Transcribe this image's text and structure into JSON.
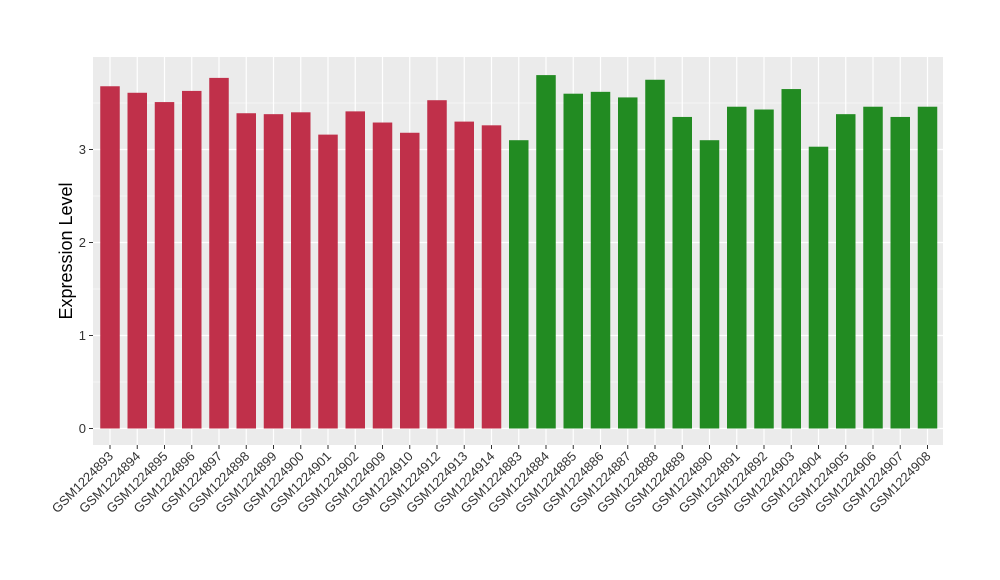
{
  "chart_data": {
    "type": "bar",
    "ylabel": "Expression Level",
    "xlabel": "",
    "ylim": [
      0,
      3.86
    ],
    "yticks": [
      0,
      1,
      2,
      3
    ],
    "grid": true,
    "background_color": "#EBEBEB",
    "grid_color": "#FFFFFF",
    "colors": {
      "group1": "#C0304A",
      "group2": "#228B22"
    },
    "categories": [
      "GSM1224893",
      "GSM1224894",
      "GSM1224895",
      "GSM1224896",
      "GSM1224897",
      "GSM1224898",
      "GSM1224899",
      "GSM1224900",
      "GSM1224901",
      "GSM1224902",
      "GSM1224909",
      "GSM1224910",
      "GSM1224912",
      "GSM1224913",
      "GSM1224914",
      "GSM1224883",
      "GSM1224884",
      "GSM1224885",
      "GSM1224886",
      "GSM1224887",
      "GSM1224888",
      "GSM1224889",
      "GSM1224890",
      "GSM1224891",
      "GSM1224892",
      "GSM1224903",
      "GSM1224904",
      "GSM1224905",
      "GSM1224906",
      "GSM1224907",
      "GSM1224908"
    ],
    "values": [
      3.68,
      3.61,
      3.51,
      3.63,
      3.77,
      3.39,
      3.38,
      3.4,
      3.16,
      3.41,
      3.29,
      3.18,
      3.53,
      3.3,
      3.26,
      3.1,
      3.8,
      3.6,
      3.62,
      3.56,
      3.75,
      3.35,
      3.1,
      3.46,
      3.43,
      3.65,
      3.03,
      3.38,
      3.46,
      3.35,
      3.46
    ],
    "groups": [
      "group1",
      "group1",
      "group1",
      "group1",
      "group1",
      "group1",
      "group1",
      "group1",
      "group1",
      "group1",
      "group1",
      "group1",
      "group1",
      "group1",
      "group1",
      "group2",
      "group2",
      "group2",
      "group2",
      "group2",
      "group2",
      "group2",
      "group2",
      "group2",
      "group2",
      "group2",
      "group2",
      "group2",
      "group2",
      "group2",
      "group2"
    ]
  }
}
